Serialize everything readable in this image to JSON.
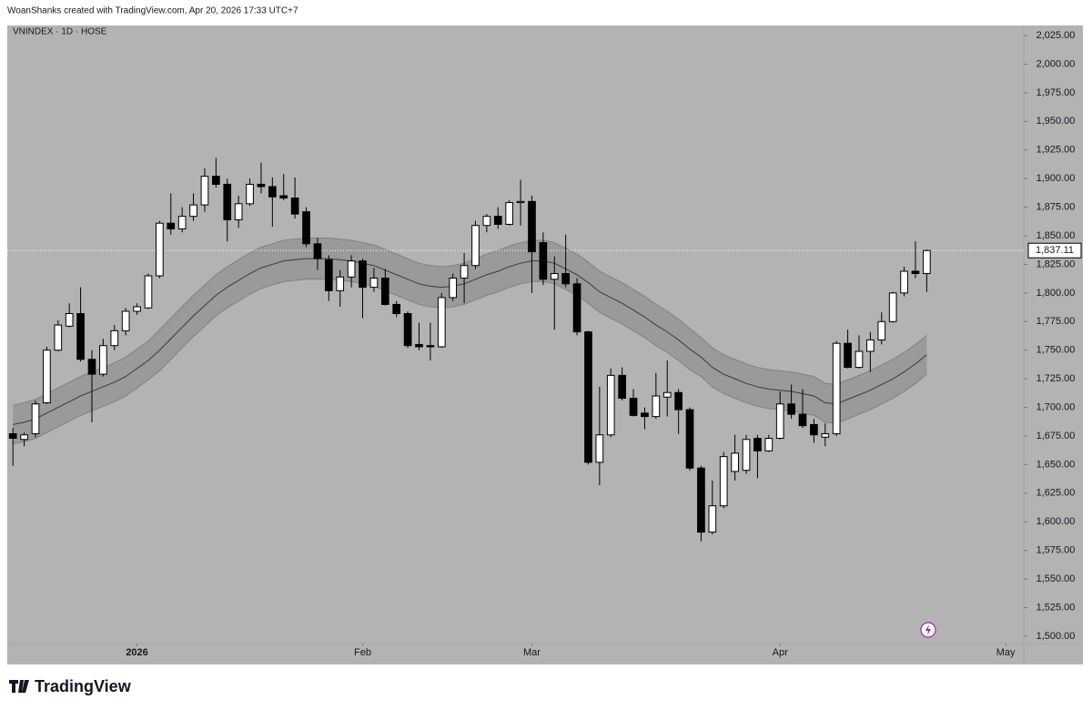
{
  "header": "WoanShanks created with TradingView.com, Apr 20, 2026 17:33 UTC+7",
  "footer_logo": "TradingView",
  "chart_data": {
    "type": "candlestick",
    "title": "VNINDEX · 1D · HOSE",
    "background": "#b3b3b3",
    "up_color": "#ffffff",
    "down_color": "#000000",
    "grid": false,
    "xlim": [
      -0.5,
      89.6
    ],
    "xticks": [
      {
        "value": 11,
        "label": "2026"
      },
      {
        "value": 31,
        "label": "Feb"
      },
      {
        "value": 46,
        "label": "Mar"
      },
      {
        "value": 68,
        "label": "Apr"
      },
      {
        "value": 88,
        "label": "May"
      }
    ],
    "ylim": [
      1493.6,
      2033.8
    ],
    "yticks": [
      {
        "value": 1500,
        "label": "1,500.00"
      },
      {
        "value": 1525,
        "label": "1,525.00"
      },
      {
        "value": 1550,
        "label": "1,550.00"
      },
      {
        "value": 1575,
        "label": "1,575.00"
      },
      {
        "value": 1600,
        "label": "1,600.00"
      },
      {
        "value": 1625,
        "label": "1,625.00"
      },
      {
        "value": 1650,
        "label": "1,650.00"
      },
      {
        "value": 1675,
        "label": "1,675.00"
      },
      {
        "value": 1700,
        "label": "1,700.00"
      },
      {
        "value": 1725,
        "label": "1,725.00"
      },
      {
        "value": 1750,
        "label": "1,750.00"
      },
      {
        "value": 1775,
        "label": "1,775.00"
      },
      {
        "value": 1800,
        "label": "1,800.00"
      },
      {
        "value": 1825,
        "label": "1,825.00"
      },
      {
        "value": 1850,
        "label": "1,850.00"
      },
      {
        "value": 1875,
        "label": "1,875.00"
      },
      {
        "value": 1900,
        "label": "1,900.00"
      },
      {
        "value": 1925,
        "label": "1,925.00"
      },
      {
        "value": 1950,
        "label": "1,950.00"
      },
      {
        "value": 1975,
        "label": "1,975.00"
      },
      {
        "value": 2000,
        "label": "2,000.00"
      },
      {
        "value": 2025,
        "label": "2,025.00"
      }
    ],
    "last_price": {
      "value": 1837.11,
      "label": "1,837.11"
    },
    "open": [
      1677,
      1672,
      1677,
      1704,
      1750,
      1771,
      1782,
      1742,
      1729,
      1754,
      1767,
      1784,
      1787,
      1815,
      1861,
      1856,
      1867,
      1877,
      1902,
      1895,
      1864,
      1878,
      1895,
      1893,
      1885,
      1883,
      1871,
      1843,
      1829,
      1802,
      1814,
      1828,
      1805,
      1813,
      1790,
      1782,
      1755,
      1754,
      1753,
      1796,
      1813,
      1824,
      1859,
      1867,
      1860,
      1879,
      1880,
      1844,
      1812,
      1817,
      1808,
      1766,
      1652,
      1676,
      1728,
      1708,
      1695,
      1692,
      1709,
      1713,
      1698,
      1647,
      1591,
      1614,
      1644,
      1645,
      1673,
      1662,
      1673,
      1703,
      1694,
      1685,
      1674,
      1677,
      1756,
      1735,
      1749,
      1759,
      1775,
      1800,
      1819,
      1817
    ],
    "high": [
      1682,
      1678,
      1706,
      1753,
      1776,
      1791,
      1805,
      1750,
      1760,
      1772,
      1787,
      1791,
      1817,
      1863,
      1887,
      1875,
      1887,
      1909,
      1918,
      1900,
      1885,
      1900,
      1914,
      1901,
      1904,
      1901,
      1875,
      1848,
      1833,
      1820,
      1833,
      1830,
      1822,
      1821,
      1793,
      1784,
      1774,
      1774,
      1800,
      1817,
      1835,
      1863,
      1869,
      1875,
      1881,
      1899,
      1885,
      1853,
      1832,
      1851,
      1813,
      1767,
      1718,
      1734,
      1735,
      1716,
      1700,
      1730,
      1741,
      1716,
      1700,
      1649,
      1636,
      1661,
      1676,
      1676,
      1676,
      1676,
      1714,
      1720,
      1716,
      1690,
      1686,
      1758,
      1768,
      1763,
      1766,
      1783,
      1801,
      1823,
      1845,
      1838
    ],
    "low": [
      1649,
      1666,
      1674,
      1703,
      1749,
      1770,
      1740,
      1687,
      1727,
      1750,
      1763,
      1781,
      1786,
      1813,
      1851,
      1853,
      1863,
      1871,
      1892,
      1845,
      1857,
      1876,
      1887,
      1858,
      1881,
      1865,
      1840,
      1820,
      1793,
      1788,
      1805,
      1778,
      1801,
      1789,
      1779,
      1752,
      1750,
      1741,
      1752,
      1793,
      1791,
      1821,
      1853,
      1856,
      1859,
      1859,
      1800,
      1807,
      1768,
      1805,
      1763,
      1650,
      1632,
      1674,
      1706,
      1692,
      1681,
      1690,
      1692,
      1677,
      1645,
      1583,
      1589,
      1612,
      1636,
      1642,
      1638,
      1661,
      1672,
      1690,
      1682,
      1669,
      1666,
      1675,
      1734,
      1734,
      1731,
      1755,
      1774,
      1797,
      1813,
      1801
    ],
    "close": [
      1673,
      1676,
      1703,
      1750,
      1772,
      1782,
      1742,
      1729,
      1754,
      1767,
      1784,
      1788,
      1815,
      1861,
      1856,
      1867,
      1877,
      1902,
      1895,
      1864,
      1878,
      1895,
      1893,
      1884,
      1883,
      1869,
      1843,
      1830,
      1802,
      1814,
      1828,
      1805,
      1813,
      1790,
      1782,
      1754,
      1753,
      1753,
      1796,
      1813,
      1824,
      1859,
      1867,
      1860,
      1879,
      1880,
      1836,
      1812,
      1817,
      1808,
      1766,
      1652,
      1676,
      1728,
      1708,
      1693,
      1692,
      1710,
      1713,
      1698,
      1647,
      1591,
      1614,
      1657,
      1660,
      1672,
      1662,
      1673,
      1703,
      1694,
      1684,
      1676,
      1677,
      1756,
      1735,
      1749,
      1759,
      1775,
      1800,
      1819,
      1817,
      1837.11
    ],
    "envelope": {
      "basis_color": "#3a3a3a",
      "edge_color": "#808080",
      "fill_color": "#9a9a9a",
      "basis": [
        1685,
        1687,
        1690,
        1695,
        1700,
        1705,
        1710,
        1714,
        1718,
        1722,
        1727,
        1734,
        1741,
        1750,
        1760,
        1770,
        1780,
        1789,
        1798,
        1805,
        1811,
        1817,
        1822,
        1825,
        1828,
        1829,
        1830,
        1830,
        1830,
        1829,
        1828,
        1826,
        1824,
        1820,
        1816,
        1812,
        1808,
        1806,
        1805,
        1806,
        1808,
        1812,
        1816,
        1819,
        1823,
        1826,
        1828,
        1828,
        1826,
        1821,
        1816,
        1809,
        1801,
        1796,
        1791,
        1785,
        1779,
        1772,
        1766,
        1759,
        1751,
        1744,
        1735,
        1729,
        1725,
        1721,
        1718,
        1716,
        1715,
        1714,
        1712,
        1710,
        1704,
        1703,
        1707,
        1711,
        1715,
        1720,
        1725,
        1731,
        1738,
        1746
      ],
      "upper": [
        1702,
        1704,
        1707,
        1712,
        1717,
        1722,
        1727,
        1731,
        1735,
        1739,
        1744,
        1751,
        1758,
        1768,
        1778,
        1788,
        1798,
        1807,
        1816,
        1823,
        1829,
        1835,
        1840,
        1843,
        1846,
        1847,
        1848,
        1848,
        1848,
        1847,
        1846,
        1844,
        1842,
        1838,
        1834,
        1830,
        1826,
        1824,
        1823,
        1824,
        1826,
        1830,
        1834,
        1837,
        1841,
        1844,
        1846,
        1846,
        1844,
        1839,
        1834,
        1827,
        1819,
        1814,
        1809,
        1803,
        1797,
        1790,
        1784,
        1777,
        1769,
        1761,
        1752,
        1746,
        1742,
        1738,
        1735,
        1733,
        1732,
        1731,
        1729,
        1727,
        1721,
        1720,
        1724,
        1728,
        1732,
        1737,
        1742,
        1748,
        1755,
        1763
      ],
      "lower": [
        1668,
        1670,
        1673,
        1678,
        1683,
        1688,
        1693,
        1697,
        1701,
        1705,
        1710,
        1717,
        1724,
        1732,
        1742,
        1752,
        1762,
        1771,
        1780,
        1787,
        1793,
        1799,
        1804,
        1807,
        1810,
        1811,
        1812,
        1812,
        1812,
        1811,
        1810,
        1808,
        1806,
        1802,
        1798,
        1794,
        1790,
        1788,
        1787,
        1788,
        1790,
        1794,
        1798,
        1801,
        1805,
        1808,
        1810,
        1810,
        1808,
        1803,
        1798,
        1791,
        1783,
        1778,
        1773,
        1767,
        1761,
        1754,
        1748,
        1741,
        1733,
        1727,
        1718,
        1712,
        1708,
        1704,
        1701,
        1699,
        1698,
        1697,
        1695,
        1693,
        1687,
        1686,
        1690,
        1694,
        1698,
        1703,
        1708,
        1714,
        1721,
        1729
      ]
    }
  }
}
